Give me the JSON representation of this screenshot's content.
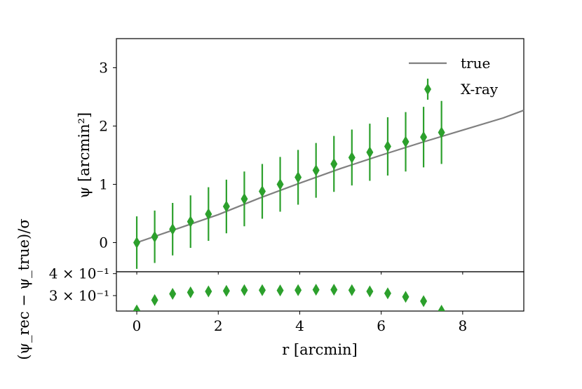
{
  "chart_data": [
    {
      "type": "line",
      "panel": "main",
      "ylabel": "ψ [arcmin²]",
      "xlim": [
        -0.5,
        9.5
      ],
      "ylim": [
        -0.5,
        3.5
      ],
      "yticks": [
        0,
        1,
        2,
        3
      ],
      "ytick_labels": [
        "0",
        "1",
        "2",
        "3"
      ],
      "legend_position": "top-right",
      "series": [
        {
          "name": "true",
          "type": "line",
          "color": "#808080",
          "x": [
            0,
            1,
            2,
            3,
            4,
            5,
            6,
            7,
            8,
            9,
            9.5
          ],
          "y": [
            0,
            0.24,
            0.48,
            0.76,
            1.02,
            1.27,
            1.5,
            1.72,
            1.93,
            2.14,
            2.27
          ]
        },
        {
          "name": "X-ray",
          "type": "errorbar",
          "marker": "diamond",
          "color": "#2ca02c",
          "x": [
            0.0,
            0.44,
            0.88,
            1.32,
            1.76,
            2.2,
            2.64,
            3.08,
            3.52,
            3.96,
            4.4,
            4.84,
            5.28,
            5.72,
            6.16,
            6.6,
            7.04,
            7.48
          ],
          "y": [
            0.0,
            0.1,
            0.23,
            0.36,
            0.49,
            0.62,
            0.75,
            0.88,
            1.0,
            1.12,
            1.24,
            1.35,
            1.46,
            1.55,
            1.65,
            1.73,
            1.81,
            1.89
          ],
          "yerr": [
            0.45,
            0.45,
            0.45,
            0.45,
            0.46,
            0.46,
            0.47,
            0.47,
            0.47,
            0.47,
            0.47,
            0.48,
            0.48,
            0.49,
            0.5,
            0.51,
            0.52,
            0.54
          ]
        }
      ]
    },
    {
      "type": "scatter",
      "panel": "residual",
      "xlabel": "r [arcmin]",
      "ylabel": "(ψ_rec − ψ_true)/σ",
      "xlim": [
        -0.5,
        9.5
      ],
      "ylim": [
        0.245,
        0.41
      ],
      "yscale": "log",
      "xticks": [
        0,
        2,
        4,
        6,
        8
      ],
      "xtick_labels": [
        "0",
        "2",
        "4",
        "6",
        "8"
      ],
      "yticks": [
        0.3,
        0.4
      ],
      "ytick_labels": [
        "3 × 10⁻¹",
        "4 × 10⁻¹"
      ],
      "series": [
        {
          "name": "X-ray",
          "marker": "diamond",
          "color": "#2ca02c",
          "x": [
            0.0,
            0.44,
            0.88,
            1.32,
            1.76,
            2.2,
            2.64,
            3.08,
            3.52,
            3.96,
            4.4,
            4.84,
            5.28,
            5.72,
            6.16,
            6.6,
            7.04,
            7.48
          ],
          "y": [
            0.247,
            0.283,
            0.307,
            0.313,
            0.317,
            0.319,
            0.322,
            0.322,
            0.321,
            0.322,
            0.324,
            0.324,
            0.322,
            0.317,
            0.309,
            0.295,
            0.279,
            0.246
          ]
        }
      ]
    }
  ]
}
